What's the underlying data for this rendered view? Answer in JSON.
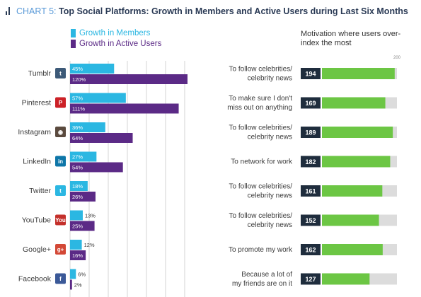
{
  "header": {
    "chart_number": "CHART 5:",
    "title": "Top Social Platforms: Growth in Members and Active Users during Last Six Months"
  },
  "colors": {
    "members": "#2bb7e2",
    "active": "#5b2a86",
    "score_bar": "#6cc644",
    "score_track": "#dcdcdc",
    "score_box": "#1f2d3d",
    "grid": "#c9c9c9"
  },
  "chart_data": [
    {
      "type": "bar",
      "orientation": "horizontal",
      "categories": [
        "Tumblr",
        "Pinterest",
        "Instagram",
        "LinkedIn",
        "Twitter",
        "YouTube",
        "Google+",
        "Facebook"
      ],
      "series": [
        {
          "name": "Growth in Members",
          "values": [
            45,
            57,
            36,
            27,
            18,
            13,
            12,
            6
          ],
          "labels": [
            "45%",
            "57%",
            "36%",
            "27%",
            "18%",
            "13%",
            "12%",
            "6%"
          ]
        },
        {
          "name": "Growth in Active Users",
          "values": [
            120,
            111,
            64,
            54,
            26,
            25,
            16,
            2
          ],
          "labels": [
            "120%",
            "111%",
            "64%",
            "54%",
            "26%",
            "25%",
            "16%",
            "2%"
          ]
        }
      ],
      "icons": [
        {
          "name": "tumblr-icon",
          "glyph": "t",
          "color": "#3d5a78"
        },
        {
          "name": "pinterest-icon",
          "glyph": "P",
          "color": "#cc2127"
        },
        {
          "name": "instagram-icon",
          "glyph": "◉",
          "color": "#5a4a3e"
        },
        {
          "name": "linkedin-icon",
          "glyph": "in",
          "color": "#0e76a8"
        },
        {
          "name": "twitter-icon",
          "glyph": "t",
          "color": "#2bb7e2"
        },
        {
          "name": "youtube-icon",
          "glyph": "You",
          "color": "#c4302b"
        },
        {
          "name": "google-plus-icon",
          "glyph": "g+",
          "color": "#d34836"
        },
        {
          "name": "facebook-icon",
          "glyph": "f",
          "color": "#3b5998"
        }
      ],
      "xlim": [
        0,
        120
      ],
      "grid": true
    },
    {
      "type": "bar",
      "orientation": "horizontal",
      "title": "Motivation where users over-index the most",
      "max_label": "200",
      "categories": [
        "To follow celebrities/\ncelebrity news",
        "To make sure I don't\nmiss out on anything",
        "To follow celebrities/\ncelebrity news",
        "To network for work",
        "To follow celebrities/\ncelebrity news",
        "To follow celebrities/\ncelebrity news",
        "To promote my work",
        "Because a lot of\nmy friends are on it"
      ],
      "values": [
        194,
        169,
        189,
        182,
        161,
        152,
        162,
        127
      ],
      "xlim": [
        0,
        200
      ]
    }
  ],
  "legend": [
    {
      "label": "Growth in Members"
    },
    {
      "label": "Growth in Active Users"
    }
  ]
}
